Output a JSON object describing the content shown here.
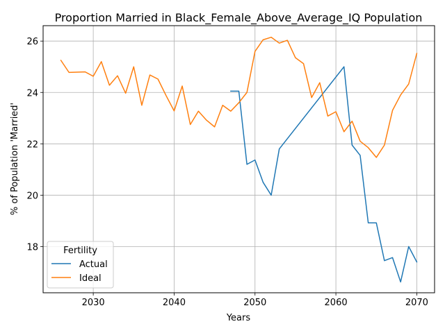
{
  "chart_data": {
    "type": "line",
    "title": "Proportion Married in Black_Female_Above_Average_IQ Population",
    "xlabel": "Years",
    "ylabel": "% of Population 'Married'",
    "xlim": [
      2023.8,
      2072.2
    ],
    "ylim": [
      16.2,
      26.6
    ],
    "xticks": [
      2030,
      2040,
      2050,
      2060,
      2070
    ],
    "yticks": [
      18,
      20,
      22,
      24,
      26
    ],
    "grid": true,
    "legend": {
      "title": "Fertility",
      "placement": "lower-left"
    },
    "series": [
      {
        "name": "Actual",
        "color": "#1f77b4",
        "x": [
          2047,
          2048,
          2049,
          2050,
          2051,
          2052,
          2053,
          2061,
          2062,
          2063,
          2064,
          2065,
          2066,
          2067,
          2068,
          2069,
          2070
        ],
        "values": [
          24.05,
          24.05,
          21.2,
          21.37,
          20.5,
          20.0,
          21.8,
          25.0,
          21.95,
          21.55,
          18.92,
          18.92,
          17.45,
          17.57,
          16.62,
          18.0,
          17.4
        ]
      },
      {
        "name": "Ideal",
        "color": "#ff7f0e",
        "x": [
          2026,
          2027,
          2028,
          2029,
          2030,
          2031,
          2032,
          2033,
          2034,
          2035,
          2036,
          2037,
          2038,
          2039,
          2040,
          2041,
          2042,
          2043,
          2044,
          2045,
          2046,
          2047,
          2048,
          2049,
          2050,
          2051,
          2052,
          2053,
          2054,
          2055,
          2056,
          2057,
          2058,
          2059,
          2060,
          2061,
          2062,
          2063,
          2064,
          2065,
          2066,
          2067,
          2068,
          2069,
          2070
        ],
        "values": [
          25.25,
          24.78,
          24.79,
          24.8,
          24.63,
          25.2,
          24.28,
          24.65,
          23.97,
          25.0,
          23.5,
          24.68,
          24.52,
          23.88,
          23.28,
          24.25,
          22.75,
          23.27,
          22.92,
          22.66,
          23.5,
          23.27,
          23.6,
          24.0,
          25.6,
          26.05,
          26.15,
          25.92,
          26.03,
          25.35,
          25.12,
          23.8,
          24.38,
          23.08,
          23.25,
          22.47,
          22.88,
          22.1,
          21.85,
          21.47,
          21.95,
          23.3,
          23.9,
          24.33,
          25.52
        ]
      }
    ]
  }
}
